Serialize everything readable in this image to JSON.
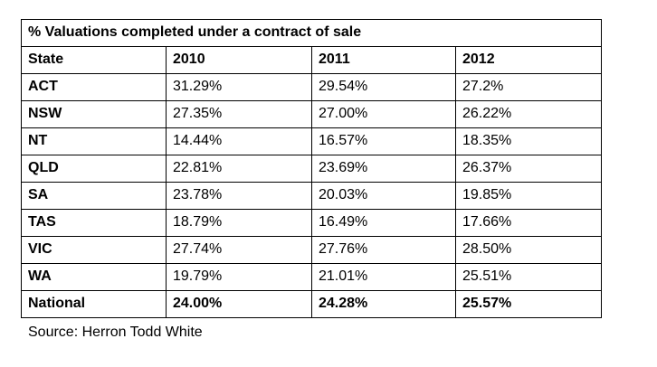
{
  "table": {
    "title": "% Valuations completed under a contract of sale",
    "headers": [
      "State",
      "2010",
      "2011",
      "2012"
    ],
    "rows": [
      {
        "state": "ACT",
        "v2010": "31.29%",
        "v2011": "29.54%",
        "v2012": "27.2%"
      },
      {
        "state": "NSW",
        "v2010": "27.35%",
        "v2011": "27.00%",
        "v2012": "26.22%"
      },
      {
        "state": "NT",
        "v2010": "14.44%",
        "v2011": "16.57%",
        "v2012": "18.35%"
      },
      {
        "state": "QLD",
        "v2010": "22.81%",
        "v2011": "23.69%",
        "v2012": "26.37%"
      },
      {
        "state": "SA",
        "v2010": "23.78%",
        "v2011": "20.03%",
        "v2012": "19.85%"
      },
      {
        "state": "TAS",
        "v2010": "18.79%",
        "v2011": "16.49%",
        "v2012": "17.66%"
      },
      {
        "state": "VIC",
        "v2010": "27.74%",
        "v2011": "27.76%",
        "v2012": "28.50%"
      },
      {
        "state": "WA",
        "v2010": "19.79%",
        "v2011": "21.01%",
        "v2012": "25.51%"
      }
    ],
    "national": {
      "state": "National",
      "v2010": "24.00%",
      "v2011": "24.28%",
      "v2012": "25.57%"
    }
  },
  "source": "Source: Herron Todd White"
}
